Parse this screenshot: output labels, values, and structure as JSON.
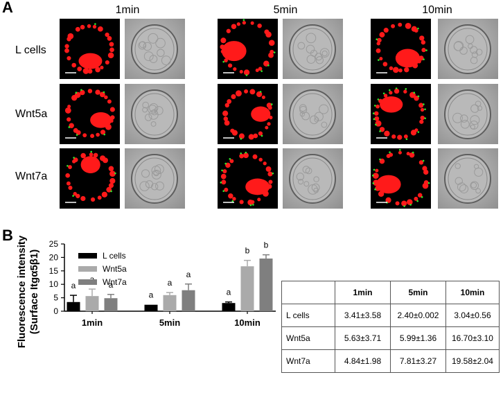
{
  "panel_a": {
    "label": "A",
    "columns": [
      "1min",
      "5min",
      "10min"
    ],
    "rows": [
      "L cells",
      "Wnt5a",
      "Wnt7a"
    ],
    "colors": {
      "red": "#ff1a1a",
      "green": "#2ee82e"
    }
  },
  "panel_b": {
    "label": "B"
  },
  "chart_data": {
    "type": "bar",
    "ylabel_line1": "Fluorescence intensity",
    "ylabel_line2": "(Surface Itgα5β1)",
    "categories": [
      "1min",
      "5min",
      "10min"
    ],
    "yticks": [
      "0",
      "5",
      "10",
      "15",
      "20",
      "25"
    ],
    "ylim": [
      0,
      25
    ],
    "legend_position": "top-left",
    "series": [
      {
        "name": "L cells",
        "color": "#000000",
        "values": [
          3.41,
          2.4,
          3.04
        ],
        "errors": [
          2.5,
          0,
          0.4
        ],
        "letters": [
          "a",
          "a",
          "a"
        ]
      },
      {
        "name": "Wnt5a",
        "color": "#aaaaaa",
        "values": [
          5.63,
          5.99,
          16.7
        ],
        "errors": [
          2.6,
          0.95,
          2.2
        ],
        "letters": [
          "a",
          "a",
          "b"
        ]
      },
      {
        "name": "Wnt7a",
        "color": "#7f7f7f",
        "values": [
          4.84,
          7.81,
          19.58
        ],
        "errors": [
          1.4,
          2.3,
          1.4
        ],
        "letters": [
          "a",
          "a",
          "b"
        ]
      }
    ]
  },
  "table": {
    "headers": [
      "",
      "1min",
      "5min",
      "10min"
    ],
    "rows": [
      [
        "L cells",
        "3.41±3.58",
        "2.40±0.002",
        "3.04±0.56"
      ],
      [
        "Wnt5a",
        "5.63±3.71",
        "5.99±1.36",
        "16.70±3.10"
      ],
      [
        "Wnt7a",
        "4.84±1.98",
        "7.81±3.27",
        "19.58±2.04"
      ]
    ]
  }
}
